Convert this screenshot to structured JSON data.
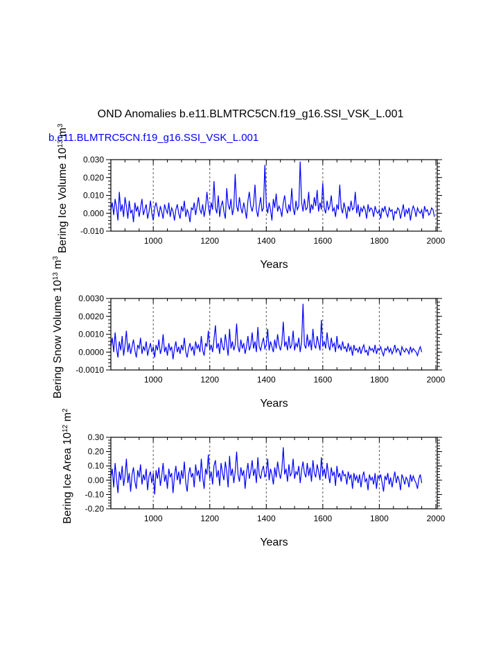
{
  "figure": {
    "title": "OND Anomalies b.e11.BLMTRC5CN.f19_g16.SSI_VSK_L.001",
    "subtitle": "b.e11.BLMTRC5CN.f19_g16.SSI_VSK_L.001",
    "line_color": "#0000ff"
  },
  "chart_data": [
    {
      "type": "line",
      "title": "",
      "xlabel": "Years",
      "ylabel": "Bering Ice Volume 10^13 m^3",
      "xlim": [
        850,
        2005
      ],
      "ylim": [
        -0.01,
        0.03
      ],
      "xticks": [
        1000,
        1200,
        1400,
        1600,
        1800,
        2000
      ],
      "xtick_labels": [
        "1000",
        "1200",
        "1400",
        "1600",
        "1800",
        "2000"
      ],
      "yticks": [
        -0.01,
        0.0,
        0.01,
        0.02,
        0.03
      ],
      "ytick_labels": [
        "-0.010",
        "0.000",
        "0.010",
        "0.020",
        "0.030"
      ],
      "grid": "vertical dashed at x ticks",
      "series": [
        {
          "x_start": 850,
          "x_step": 5,
          "values": [
            0.002,
            0.006,
            -0.001,
            0.008,
            0.003,
            -0.004,
            0.012,
            0.001,
            0.005,
            -0.002,
            0.009,
            0.004,
            -0.003,
            0.007,
            0.0,
            0.002,
            -0.005,
            0.006,
            0.001,
            0.004,
            -0.002,
            0.003,
            0.008,
            -0.001,
            0.002,
            0.005,
            -0.003,
            0.001,
            0.007,
            0.0,
            -0.004,
            0.003,
            0.006,
            0.002,
            -0.002,
            0.004,
            0.001,
            -0.003,
            0.005,
            0.002,
            0.0,
            0.006,
            -0.002,
            0.003,
            0.001,
            -0.004,
            0.002,
            0.005,
            0.0,
            -0.003,
            0.004,
            0.001,
            0.007,
            -0.002,
            0.002,
            0.0,
            -0.005,
            0.003,
            0.002,
            0.006,
            -0.001,
            0.004,
            0.009,
            0.002,
            0.0,
            0.005,
            -0.002,
            0.003,
            0.012,
            0.004,
            -0.001,
            0.006,
            0.002,
            0.018,
            0.003,
            0.0,
            0.01,
            -0.002,
            0.004,
            0.007,
            0.001,
            -0.003,
            0.014,
            0.005,
            0.002,
            0.008,
            -0.001,
            0.003,
            0.022,
            0.004,
            0.001,
            0.009,
            0.003,
            0.0,
            0.006,
            0.002,
            -0.003,
            0.007,
            0.012,
            0.004,
            0.001,
            0.005,
            0.016,
            0.002,
            -0.002,
            0.004,
            0.009,
            0.001,
            0.003,
            0.027,
            0.005,
            0.0,
            0.006,
            0.002,
            -0.004,
            0.008,
            0.003,
            0.011,
            0.001,
            0.004,
            0.002,
            -0.002,
            0.006,
            0.01,
            0.003,
            0.0,
            0.005,
            0.001,
            0.014,
            0.003,
            -0.001,
            0.007,
            0.002,
            0.004,
            0.029,
            0.006,
            0.001,
            0.008,
            0.002,
            0.003,
            0.012,
            0.0,
            0.005,
            0.002,
            0.009,
            0.004,
            0.013,
            0.001,
            0.006,
            0.002,
            0.017,
            0.003,
            0.0,
            0.007,
            0.002,
            0.004,
            0.01,
            0.001,
            0.003,
            -0.002,
            0.005,
            0.002,
            0.016,
            0.003,
            0.0,
            0.006,
            0.002,
            -0.003,
            0.004,
            0.001,
            0.007,
            0.002,
            0.003,
            0.012,
            0.0,
            0.005,
            -0.002,
            0.003,
            0.001,
            0.004,
            0.002,
            -0.003,
            0.005,
            0.001,
            0.003,
            0.002,
            -0.002,
            0.004,
            0.001,
            0.0,
            0.002,
            -0.003,
            0.003,
            0.001,
            0.004,
            0.0,
            -0.002,
            0.003,
            0.001,
            0.002,
            -0.004,
            0.001,
            0.0,
            0.003,
            0.002,
            -0.003,
            0.001,
            0.005,
            -0.002,
            0.002,
            0.0,
            0.003,
            -0.004,
            0.001,
            0.004,
            0.002,
            -0.002,
            0.003,
            0.001,
            0.0,
            0.002,
            -0.003,
            0.004,
            0.001,
            0.002,
            -0.001,
            0.0,
            0.003,
            0.002,
            -0.002
          ]
        }
      ]
    },
    {
      "type": "line",
      "title": "",
      "xlabel": "Years",
      "ylabel": "Bering Snow Volume 10^13 m^3",
      "xlim": [
        850,
        2005
      ],
      "ylim": [
        -0.001,
        0.003
      ],
      "xticks": [
        1000,
        1200,
        1400,
        1600,
        1800,
        2000
      ],
      "xtick_labels": [
        "1000",
        "1200",
        "1400",
        "1600",
        "1800",
        "2000"
      ],
      "yticks": [
        -0.001,
        0.0,
        0.001,
        0.002,
        0.003
      ],
      "ytick_labels": [
        "-0.0010",
        "0.0000",
        "0.0010",
        "0.0020",
        "0.0030"
      ],
      "grid": "vertical dashed at x ticks",
      "series": [
        {
          "x_start": 850,
          "x_step": 5,
          "values": [
            0.0003,
            0.0008,
            0.0,
            0.0011,
            0.0002,
            -0.0003,
            0.0006,
            0.0001,
            0.0009,
            -0.0002,
            0.0004,
            0.0012,
            0.0,
            0.0005,
            -0.0001,
            0.0003,
            0.0007,
            0.0001,
            -0.0003,
            0.0004,
            0.0002,
            0.0008,
            -0.0001,
            0.0003,
            0.0001,
            0.0006,
            -0.0002,
            0.0002,
            0.0005,
            0.0,
            0.0003,
            -0.0003,
            0.0004,
            0.0001,
            0.0007,
            -0.0001,
            0.0002,
            0.001,
            0.0,
            0.0003,
            -0.0002,
            0.0005,
            0.0001,
            0.0003,
            -0.0004,
            0.0002,
            0.0006,
            0.0,
            0.0003,
            -0.0001,
            0.0004,
            0.0001,
            0.0008,
            0.0,
            -0.0003,
            0.0002,
            0.0005,
            0.0001,
            0.0003,
            -0.0002,
            0.0006,
            0.0002,
            0.0004,
            0.0,
            0.0009,
            0.0001,
            -0.0002,
            0.0005,
            0.0003,
            0.0012,
            0.0001,
            0.0004,
            0.0,
            0.0007,
            0.0015,
            0.0002,
            0.0005,
            -0.0001,
            0.0008,
            0.0003,
            0.0001,
            0.001,
            0.0004,
            -0.0002,
            0.0013,
            0.0002,
            0.0006,
            0.0001,
            0.0004,
            0.0016,
            0.0003,
            0.0,
            0.0007,
            0.0002,
            0.0005,
            -0.0001,
            0.0003,
            0.0009,
            0.0001,
            0.0004,
            0.0011,
            0.0002,
            0.0006,
            0.0,
            0.0014,
            0.0003,
            0.0001,
            0.0005,
            0.0008,
            0.0002,
            0.0004,
            0.0013,
            0.0001,
            0.0006,
            0.0003,
            0.0,
            0.0007,
            0.0002,
            0.001,
            0.0004,
            0.0001,
            0.0005,
            0.0017,
            0.0003,
            0.0006,
            0.0001,
            0.0009,
            0.0002,
            0.0004,
            0.0012,
            0.0001,
            0.0005,
            0.0003,
            0.0008,
            0.0,
            0.0006,
            0.0027,
            0.0004,
            0.0002,
            0.001,
            0.0003,
            0.0007,
            0.0001,
            0.0013,
            0.0004,
            0.0002,
            0.0009,
            0.0005,
            0.0001,
            0.0018,
            0.0003,
            0.0006,
            0.0002,
            0.0011,
            0.0004,
            0.0001,
            0.0008,
            0.0003,
            0.0005,
            0.0,
            0.0009,
            0.0002,
            0.0004,
            0.0001,
            0.0006,
            0.0002,
            0.0003,
            0.0,
            0.0005,
            0.0001,
            0.0003,
            -0.0002,
            0.0004,
            0.0001,
            0.0002,
            0.0,
            0.0003,
            -0.0001,
            0.0002,
            0.0004,
            0.0,
            0.0001,
            -0.0002,
            0.0003,
            0.0001,
            0.0002,
            0.0,
            0.0004,
            -0.0001,
            0.0002,
            0.0001,
            0.0003,
            0.0,
            -0.0002,
            0.0002,
            0.0001,
            0.0003,
            0.0,
            0.0002,
            -0.0001,
            0.0001,
            0.0004,
            0.0,
            0.0002,
            0.0001,
            -0.0002,
            0.0003,
            0.0001,
            0.0,
            0.0002,
            0.0001,
            -0.0001,
            0.0003,
            0.0,
            0.0002,
            0.0001,
            0.0,
            -0.0002,
            0.0001,
            0.0003,
            0.0
          ]
        }
      ]
    },
    {
      "type": "line",
      "title": "",
      "xlabel": "Years",
      "ylabel": "Bering Ice Area 10^12 m^2",
      "xlim": [
        850,
        2005
      ],
      "ylim": [
        -0.2,
        0.3
      ],
      "xticks": [
        1000,
        1200,
        1400,
        1600,
        1800,
        2000
      ],
      "xtick_labels": [
        "1000",
        "1200",
        "1400",
        "1600",
        "1800",
        "2000"
      ],
      "yticks": [
        -0.2,
        -0.1,
        0.0,
        0.1,
        0.2,
        0.3
      ],
      "ytick_labels": [
        "-0.20",
        "-0.10",
        "0.00",
        "0.10",
        "0.20",
        "0.30"
      ],
      "grid": "vertical dashed at x ticks",
      "series": [
        {
          "x_start": 850,
          "x_step": 5,
          "values": [
            0.02,
            0.08,
            -0.05,
            0.12,
            0.01,
            -0.09,
            0.06,
            0.0,
            0.1,
            -0.04,
            0.03,
            0.15,
            -0.02,
            0.05,
            -0.08,
            0.04,
            0.09,
            -0.01,
            -0.06,
            0.07,
            0.02,
            0.11,
            -0.03,
            0.04,
            0.0,
            0.08,
            -0.07,
            0.03,
            0.06,
            -0.02,
            0.05,
            -0.1,
            0.07,
            0.01,
            0.09,
            -0.04,
            0.03,
            0.12,
            -0.01,
            0.04,
            -0.06,
            0.08,
            0.02,
            0.05,
            -0.09,
            0.03,
            0.1,
            0.0,
            0.06,
            -0.03,
            0.07,
            0.01,
            0.13,
            -0.02,
            -0.08,
            0.04,
            0.09,
            0.02,
            0.05,
            -0.05,
            0.11,
            0.03,
            0.07,
            -0.01,
            0.15,
            0.02,
            -0.06,
            0.08,
            0.04,
            0.18,
            0.01,
            0.06,
            -0.03,
            0.1,
            0.14,
            0.02,
            0.07,
            -0.04,
            0.12,
            0.05,
            0.0,
            0.13,
            0.06,
            -0.05,
            0.17,
            0.03,
            0.08,
            -0.02,
            0.06,
            0.2,
            0.04,
            -0.01,
            0.09,
            0.03,
            0.07,
            -0.06,
            0.05,
            0.12,
            0.01,
            0.06,
            0.14,
            0.03,
            0.08,
            -0.02,
            0.16,
            0.04,
            0.01,
            0.07,
            0.1,
            0.02,
            0.05,
            0.15,
            0.0,
            0.08,
            0.04,
            -0.03,
            0.09,
            0.02,
            0.13,
            0.06,
            0.01,
            0.07,
            0.23,
            0.04,
            0.08,
            -0.01,
            0.11,
            0.03,
            0.05,
            0.15,
            0.01,
            0.06,
            0.04,
            0.1,
            -0.02,
            0.07,
            0.13,
            0.05,
            0.02,
            0.12,
            0.03,
            0.09,
            -0.01,
            0.14,
            0.05,
            0.02,
            0.11,
            0.06,
            0.0,
            0.16,
            0.03,
            0.08,
            0.01,
            0.12,
            0.04,
            -0.02,
            0.09,
            0.03,
            0.06,
            -0.04,
            0.1,
            0.02,
            0.05,
            -0.01,
            0.07,
            0.03,
            0.04,
            -0.03,
            0.06,
            0.01,
            0.04,
            -0.06,
            0.05,
            0.0,
            0.03,
            -0.02,
            0.04,
            -0.05,
            0.02,
            0.06,
            -0.01,
            0.01,
            -0.07,
            0.04,
            0.0,
            0.02,
            -0.03,
            0.05,
            -0.06,
            0.03,
            0.01,
            0.04,
            -0.02,
            -0.08,
            0.03,
            0.0,
            0.05,
            -0.03,
            0.02,
            -0.05,
            0.01,
            0.06,
            -0.02,
            0.03,
            0.0,
            -0.07,
            0.04,
            0.01,
            -0.03,
            0.02,
            0.0,
            -0.05,
            0.04,
            -0.01,
            0.03,
            0.0,
            -0.02,
            -0.06,
            0.01,
            0.04,
            -0.02
          ]
        }
      ]
    }
  ]
}
